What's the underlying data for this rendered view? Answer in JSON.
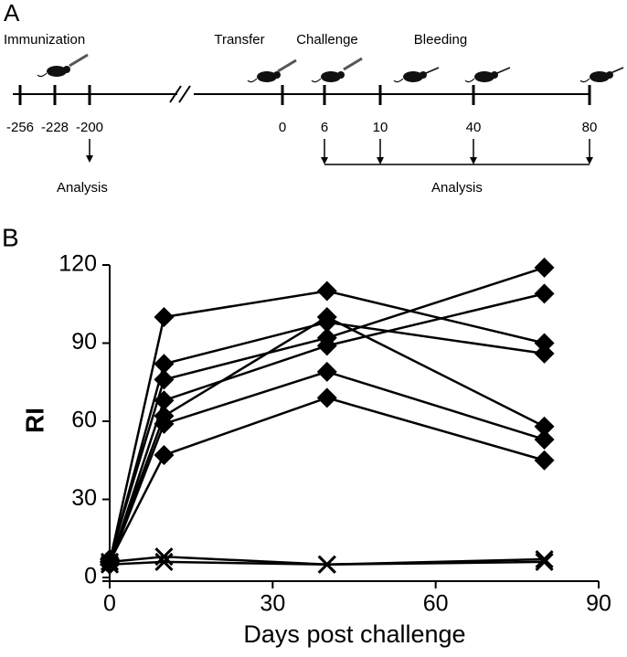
{
  "panel_a": {
    "label": "A",
    "events": [
      "Immunization",
      "Transfer",
      "Challenge",
      "Bleeding"
    ],
    "timepoints": [
      "-256",
      "-228",
      "-200",
      "0",
      "6",
      "10",
      "40",
      "80"
    ],
    "analysis_labels": [
      "Analysis",
      "Analysis"
    ]
  },
  "chart_data": {
    "type": "line",
    "panel_label": "B",
    "x_label": "Days post challenge",
    "y_label": "RI",
    "x": [
      0,
      10,
      40,
      80
    ],
    "series": [
      {
        "color": "#000000",
        "marker": "diamond",
        "values": [
          6,
          100,
          110,
          90
        ]
      },
      {
        "color": "#000000",
        "marker": "diamond",
        "values": [
          6,
          82,
          98,
          86
        ]
      },
      {
        "color": "#000000",
        "marker": "diamond",
        "values": [
          7,
          76,
          92,
          119
        ]
      },
      {
        "color": "#000000",
        "marker": "diamond",
        "values": [
          5,
          68,
          89,
          109
        ]
      },
      {
        "color": "#000000",
        "marker": "diamond",
        "values": [
          6,
          62,
          100,
          58
        ]
      },
      {
        "color": "#000000",
        "marker": "diamond",
        "values": [
          5,
          59,
          79,
          53
        ]
      },
      {
        "color": "#000000",
        "marker": "diamond",
        "values": [
          6,
          47,
          69,
          45
        ]
      },
      {
        "color": "#000000",
        "marker": "x",
        "values": [
          6,
          8,
          5,
          7
        ]
      },
      {
        "color": "#000000",
        "marker": "x",
        "values": [
          5,
          6,
          5,
          6
        ]
      }
    ],
    "xlim": [
      0,
      90
    ],
    "xticks": [
      0,
      30,
      60,
      90
    ],
    "ylim": [
      0,
      120
    ],
    "yticks": [
      0,
      30,
      60,
      90,
      120
    ],
    "grid": false
  }
}
